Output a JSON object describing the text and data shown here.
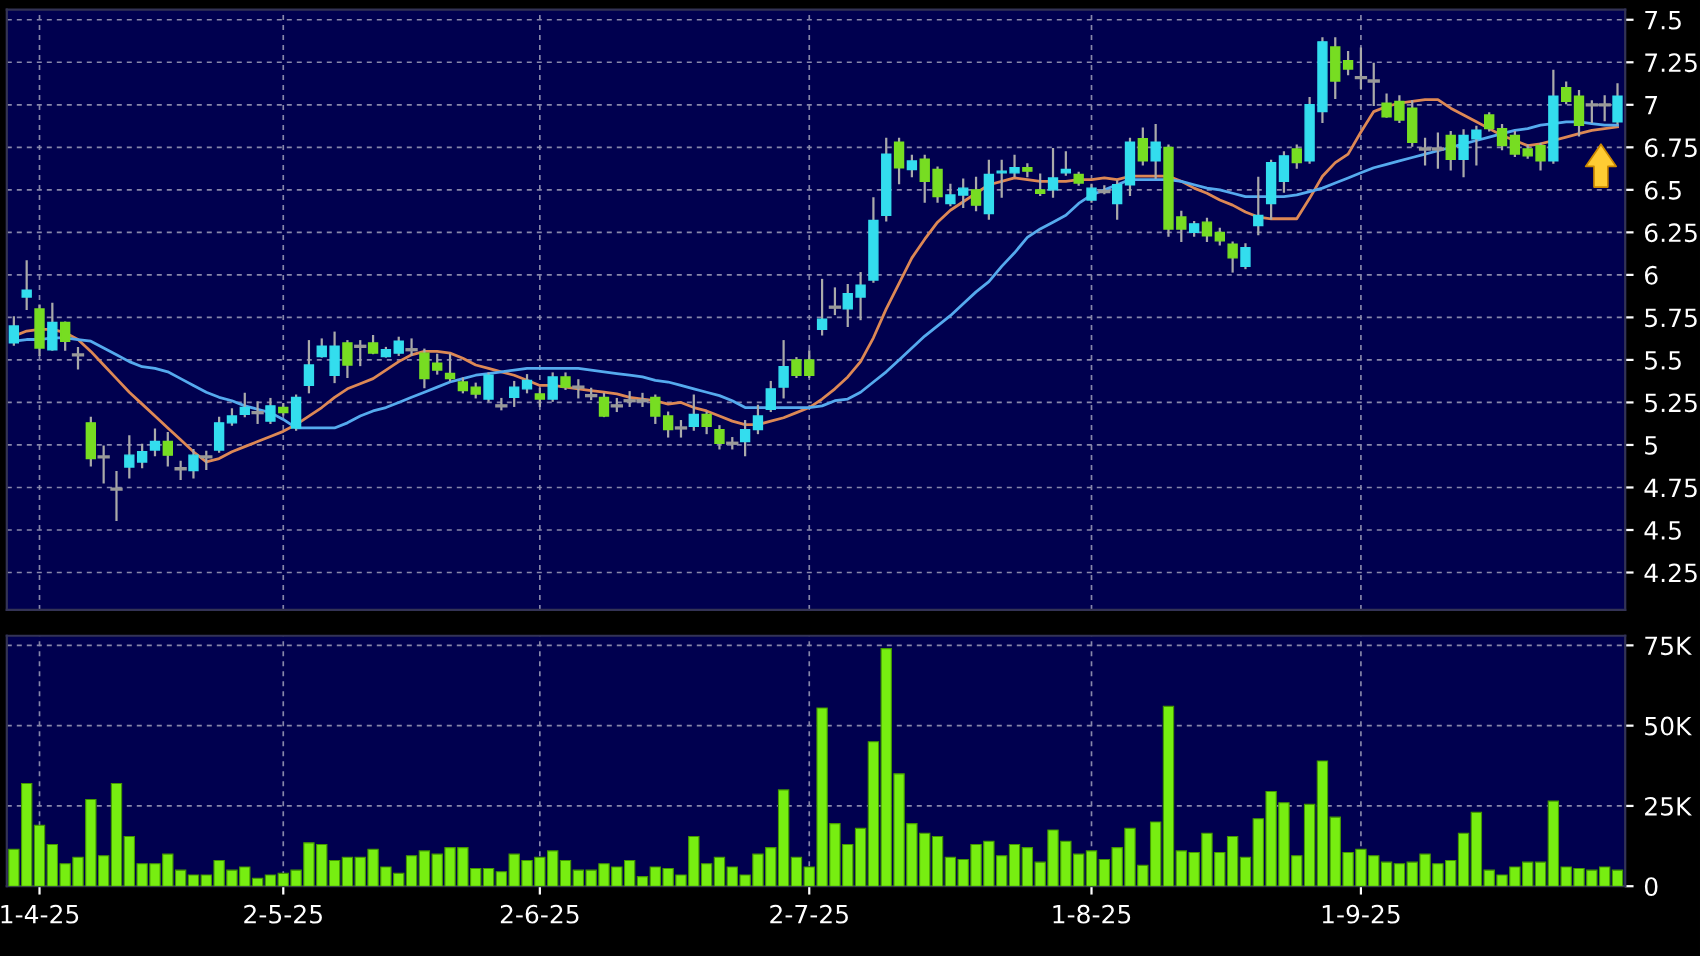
{
  "chart_data": [
    {
      "type": "candlestick",
      "tick_labels": "y",
      "grid": true,
      "categories": [
        null,
        null,
        null,
        null,
        null,
        null,
        null,
        null,
        null,
        null,
        null,
        null,
        null,
        null,
        null,
        null,
        null,
        null,
        null,
        null,
        null,
        null,
        null,
        null,
        null,
        null,
        null,
        null,
        null,
        null,
        null,
        null,
        null,
        null,
        null,
        null,
        null,
        null,
        null,
        null,
        null,
        null,
        null,
        null,
        null,
        null,
        null,
        null,
        null,
        null,
        null,
        null,
        null,
        null,
        null,
        null,
        null,
        null,
        null,
        null,
        null,
        null,
        null,
        null,
        null,
        null,
        null,
        null,
        null,
        null,
        null,
        null,
        null,
        null,
        null,
        null,
        null,
        null,
        null,
        null,
        null,
        null,
        null,
        null,
        null,
        null,
        null,
        null,
        null,
        null,
        null,
        null,
        null,
        null,
        null,
        null,
        null,
        null,
        null,
        null,
        null,
        null,
        null,
        null,
        null,
        null,
        null,
        null,
        null,
        null,
        null,
        null,
        null,
        null,
        null,
        null,
        null,
        null,
        null,
        null,
        null,
        null,
        null,
        null,
        null,
        null
      ],
      "ylim": [
        4.03,
        7.56
      ],
      "yticks": [
        4.25,
        4.5,
        4.75,
        5,
        5.25,
        5.5,
        5.75,
        6,
        6.25,
        6.5,
        6.75,
        7,
        7.25,
        7.5
      ],
      "ohlc": [
        [
          5.6,
          5.75,
          5.59,
          5.7
        ],
        [
          5.87,
          6.08,
          5.8,
          5.91
        ],
        [
          5.8,
          5.82,
          5.53,
          5.57
        ],
        [
          5.56,
          5.83,
          5.56,
          5.72
        ],
        [
          5.72,
          5.72,
          5.56,
          5.61
        ],
        [
          5.53,
          5.57,
          5.45,
          5.53
        ],
        [
          5.13,
          5.16,
          4.88,
          4.92
        ],
        [
          4.93,
          4.99,
          4.78,
          4.93
        ],
        [
          4.74,
          4.84,
          4.56,
          4.74
        ],
        [
          4.87,
          5.05,
          4.81,
          4.94
        ],
        [
          4.9,
          5.0,
          4.87,
          4.96
        ],
        [
          4.97,
          5.09,
          4.94,
          5.02
        ],
        [
          5.02,
          5.07,
          4.88,
          4.94
        ],
        [
          4.86,
          4.9,
          4.8,
          4.86
        ],
        [
          4.85,
          4.97,
          4.81,
          4.94
        ],
        [
          4.93,
          4.96,
          4.86,
          4.93
        ],
        [
          4.97,
          5.16,
          4.96,
          5.13
        ],
        [
          5.13,
          5.21,
          5.12,
          5.17
        ],
        [
          5.18,
          5.3,
          5.17,
          5.22
        ],
        [
          5.19,
          5.25,
          5.13,
          5.19
        ],
        [
          5.14,
          5.27,
          5.13,
          5.23
        ],
        [
          5.22,
          5.24,
          5.18,
          5.19
        ],
        [
          5.1,
          5.29,
          5.09,
          5.28
        ],
        [
          5.35,
          5.61,
          5.31,
          5.47
        ],
        [
          5.52,
          5.62,
          5.52,
          5.58
        ],
        [
          5.41,
          5.66,
          5.37,
          5.58
        ],
        [
          5.6,
          5.61,
          5.4,
          5.47
        ],
        [
          5.58,
          5.61,
          5.47,
          5.58
        ],
        [
          5.6,
          5.64,
          5.54,
          5.54
        ],
        [
          5.52,
          5.57,
          5.52,
          5.56
        ],
        [
          5.54,
          5.63,
          5.53,
          5.61
        ],
        [
          5.56,
          5.62,
          5.53,
          5.56
        ],
        [
          5.54,
          5.56,
          5.34,
          5.39
        ],
        [
          5.48,
          5.53,
          5.42,
          5.44
        ],
        [
          5.42,
          5.53,
          5.38,
          5.39
        ],
        [
          5.37,
          5.39,
          5.31,
          5.32
        ],
        [
          5.34,
          5.36,
          5.28,
          5.3
        ],
        [
          5.27,
          5.42,
          5.26,
          5.41
        ],
        [
          5.23,
          5.27,
          5.21,
          5.23
        ],
        [
          5.28,
          5.37,
          5.23,
          5.34
        ],
        [
          5.33,
          5.41,
          5.31,
          5.38
        ],
        [
          5.3,
          5.33,
          5.23,
          5.27
        ],
        [
          5.27,
          5.42,
          5.26,
          5.4
        ],
        [
          5.4,
          5.42,
          5.33,
          5.34
        ],
        [
          5.34,
          5.38,
          5.28,
          5.34
        ],
        [
          5.29,
          5.33,
          5.27,
          5.29
        ],
        [
          5.28,
          5.3,
          5.17,
          5.17
        ],
        [
          5.23,
          5.27,
          5.2,
          5.23
        ],
        [
          5.26,
          5.31,
          5.23,
          5.26
        ],
        [
          5.26,
          5.3,
          5.23,
          5.26
        ],
        [
          5.28,
          5.29,
          5.13,
          5.17
        ],
        [
          5.17,
          5.19,
          5.05,
          5.09
        ],
        [
          5.1,
          5.14,
          5.05,
          5.1
        ],
        [
          5.11,
          5.29,
          5.09,
          5.18
        ],
        [
          5.18,
          5.19,
          5.07,
          5.11
        ],
        [
          5.09,
          5.11,
          4.98,
          5.01
        ],
        [
          5.01,
          5.04,
          4.98,
          5.01
        ],
        [
          5.02,
          5.14,
          4.94,
          5.09
        ],
        [
          5.09,
          5.23,
          5.07,
          5.17
        ],
        [
          5.21,
          5.37,
          5.2,
          5.33
        ],
        [
          5.34,
          5.61,
          5.28,
          5.46
        ],
        [
          5.5,
          5.51,
          5.4,
          5.41
        ],
        [
          5.5,
          5.55,
          5.4,
          5.41
        ],
        [
          5.68,
          5.97,
          5.65,
          5.74
        ],
        [
          5.81,
          5.92,
          5.77,
          5.81
        ],
        [
          5.8,
          5.94,
          5.7,
          5.89
        ],
        [
          5.87,
          6.01,
          5.74,
          5.94
        ],
        [
          5.97,
          6.45,
          5.96,
          6.32
        ],
        [
          6.35,
          6.8,
          6.32,
          6.71
        ],
        [
          6.78,
          6.8,
          6.54,
          6.63
        ],
        [
          6.62,
          6.7,
          6.58,
          6.67
        ],
        [
          6.68,
          6.7,
          6.43,
          6.55
        ],
        [
          6.62,
          6.63,
          6.43,
          6.46
        ],
        [
          6.42,
          6.53,
          6.41,
          6.47
        ],
        [
          6.47,
          6.56,
          6.4,
          6.51
        ],
        [
          6.5,
          6.57,
          6.38,
          6.41
        ],
        [
          6.36,
          6.67,
          6.33,
          6.59
        ],
        [
          6.6,
          6.67,
          6.46,
          6.61
        ],
        [
          6.6,
          6.7,
          6.58,
          6.63
        ],
        [
          6.63,
          6.65,
          6.58,
          6.61
        ],
        [
          6.5,
          6.59,
          6.47,
          6.48
        ],
        [
          6.5,
          6.74,
          6.46,
          6.57
        ],
        [
          6.6,
          6.72,
          6.59,
          6.62
        ],
        [
          6.59,
          6.6,
          6.53,
          6.54
        ],
        [
          6.44,
          6.53,
          6.43,
          6.51
        ],
        [
          6.49,
          6.52,
          6.48,
          6.49
        ],
        [
          6.42,
          6.55,
          6.33,
          6.53
        ],
        [
          6.53,
          6.8,
          6.47,
          6.78
        ],
        [
          6.8,
          6.86,
          6.65,
          6.67
        ],
        [
          6.67,
          6.88,
          6.57,
          6.78
        ],
        [
          6.75,
          6.76,
          6.23,
          6.27
        ],
        [
          6.34,
          6.37,
          6.2,
          6.27
        ],
        [
          6.25,
          6.31,
          6.23,
          6.3
        ],
        [
          6.31,
          6.33,
          6.2,
          6.23
        ],
        [
          6.25,
          6.27,
          6.18,
          6.2
        ],
        [
          6.18,
          6.19,
          6.02,
          6.1
        ],
        [
          6.05,
          6.18,
          6.04,
          6.16
        ],
        [
          6.29,
          6.57,
          6.24,
          6.35
        ],
        [
          6.42,
          6.67,
          6.33,
          6.66
        ],
        [
          6.55,
          6.72,
          6.49,
          6.7
        ],
        [
          6.74,
          6.76,
          6.63,
          6.66
        ],
        [
          6.67,
          7.04,
          6.66,
          7.0
        ],
        [
          6.96,
          7.39,
          6.9,
          7.37
        ],
        [
          7.34,
          7.39,
          7.04,
          7.14
        ],
        [
          7.26,
          7.31,
          7.18,
          7.21
        ],
        [
          7.16,
          7.33,
          7.1,
          7.16
        ],
        [
          7.14,
          7.24,
          7.0,
          7.14
        ],
        [
          7.01,
          7.06,
          6.93,
          6.93
        ],
        [
          7.02,
          7.05,
          6.9,
          6.91
        ],
        [
          6.98,
          7.02,
          6.76,
          6.78
        ],
        [
          6.74,
          6.8,
          6.65,
          6.74
        ],
        [
          6.74,
          6.83,
          6.63,
          6.74
        ],
        [
          6.82,
          6.84,
          6.62,
          6.68
        ],
        [
          6.68,
          6.85,
          6.58,
          6.82
        ],
        [
          6.8,
          6.87,
          6.65,
          6.85
        ],
        [
          6.94,
          6.95,
          6.85,
          6.86
        ],
        [
          6.86,
          6.88,
          6.74,
          6.76
        ],
        [
          6.82,
          6.84,
          6.7,
          6.71
        ],
        [
          6.74,
          6.76,
          6.69,
          6.7
        ],
        [
          6.76,
          6.77,
          6.62,
          6.67
        ],
        [
          6.67,
          7.2,
          6.66,
          7.05
        ],
        [
          7.1,
          7.13,
          7.01,
          7.02
        ],
        [
          7.05,
          7.08,
          6.82,
          6.88
        ],
        [
          7.0,
          7.02,
          6.9,
          7.0
        ],
        [
          7.0,
          7.05,
          6.91,
          7.0
        ],
        [
          6.9,
          7.12,
          6.89,
          7.05
        ]
      ],
      "colors": [
        "#33ddee",
        "#33ddee",
        "#77dd22",
        "#33ddee",
        "#77dd22",
        "#999999",
        "#77dd22",
        "#999999",
        "#999999",
        "#33ddee",
        "#33ddee",
        "#33ddee",
        "#77dd22",
        "#999999",
        "#33ddee",
        "#999999",
        "#33ddee",
        "#33ddee",
        "#33ddee",
        "#999999",
        "#33ddee",
        "#77dd22",
        "#33ddee",
        "#33ddee",
        "#33ddee",
        "#33ddee",
        "#77dd22",
        "#999999",
        "#77dd22",
        "#33ddee",
        "#33ddee",
        "#999999",
        "#77dd22",
        "#77dd22",
        "#77dd22",
        "#77dd22",
        "#77dd22",
        "#33ddee",
        "#999999",
        "#33ddee",
        "#33ddee",
        "#77dd22",
        "#33ddee",
        "#77dd22",
        "#999999",
        "#999999",
        "#77dd22",
        "#999999",
        "#999999",
        "#999999",
        "#77dd22",
        "#77dd22",
        "#999999",
        "#33ddee",
        "#77dd22",
        "#77dd22",
        "#999999",
        "#33ddee",
        "#33ddee",
        "#33ddee",
        "#33ddee",
        "#77dd22",
        "#77dd22",
        "#33ddee",
        "#999999",
        "#33ddee",
        "#33ddee",
        "#33ddee",
        "#33ddee",
        "#77dd22",
        "#33ddee",
        "#77dd22",
        "#77dd22",
        "#33ddee",
        "#33ddee",
        "#77dd22",
        "#33ddee",
        "#33ddee",
        "#33ddee",
        "#77dd22",
        "#77dd22",
        "#33ddee",
        "#33ddee",
        "#77dd22",
        "#33ddee",
        "#999999",
        "#33ddee",
        "#33ddee",
        "#77dd22",
        "#33ddee",
        "#77dd22",
        "#77dd22",
        "#33ddee",
        "#77dd22",
        "#77dd22",
        "#77dd22",
        "#33ddee",
        "#33ddee",
        "#33ddee",
        "#33ddee",
        "#77dd22",
        "#33ddee",
        "#33ddee",
        "#77dd22",
        "#77dd22",
        "#999999",
        "#999999",
        "#77dd22",
        "#77dd22",
        "#77dd22",
        "#999999",
        "#999999",
        "#77dd22",
        "#33ddee",
        "#33ddee",
        "#77dd22",
        "#77dd22",
        "#77dd22",
        "#77dd22",
        "#77dd22",
        "#33ddee",
        "#77dd22",
        "#77dd22",
        "#999999",
        "#999999",
        "#33ddee"
      ],
      "series": [
        {
          "type": "line",
          "color": "#dd8855",
          "values": [
            5.64,
            5.67,
            5.68,
            5.68,
            5.66,
            5.62,
            5.55,
            5.47,
            5.39,
            5.31,
            5.24,
            5.17,
            5.1,
            5.03,
            4.96,
            4.9,
            4.92,
            4.96,
            4.99,
            5.02,
            5.05,
            5.08,
            5.12,
            5.17,
            5.22,
            5.28,
            5.33,
            5.36,
            5.39,
            5.44,
            5.49,
            5.53,
            5.55,
            5.55,
            5.54,
            5.51,
            5.47,
            5.45,
            5.43,
            5.41,
            5.38,
            5.35,
            5.35,
            5.34,
            5.33,
            5.32,
            5.31,
            5.3,
            5.28,
            5.27,
            5.26,
            5.24,
            5.25,
            5.22,
            5.2,
            5.17,
            5.14,
            5.12,
            5.12,
            5.14,
            5.16,
            5.19,
            5.22,
            5.27,
            5.33,
            5.4,
            5.49,
            5.63,
            5.8,
            5.95,
            6.1,
            6.21,
            6.31,
            6.38,
            6.43,
            6.48,
            6.53,
            6.55,
            6.57,
            6.56,
            6.55,
            6.55,
            6.55,
            6.56,
            6.56,
            6.57,
            6.56,
            6.58,
            6.58,
            6.58,
            6.58,
            6.55,
            6.51,
            6.48,
            6.44,
            6.41,
            6.37,
            6.34,
            6.33,
            6.33,
            6.33,
            6.45,
            6.58,
            6.66,
            6.71,
            6.84,
            6.96,
            6.99,
            7.01,
            7.02,
            7.03,
            7.03,
            6.98,
            6.94,
            6.9,
            6.86,
            6.82,
            6.79,
            6.76,
            6.77,
            6.79,
            6.81,
            6.83,
            6.85,
            6.86,
            6.87
          ]
        },
        {
          "type": "line",
          "color": "#55aaee",
          "values": [
            5.61,
            5.62,
            5.62,
            5.63,
            5.63,
            5.62,
            5.61,
            5.57,
            5.53,
            5.49,
            5.46,
            5.45,
            5.43,
            5.39,
            5.35,
            5.31,
            5.28,
            5.26,
            5.23,
            5.21,
            5.19,
            5.15,
            5.1,
            5.1,
            5.1,
            5.1,
            5.13,
            5.17,
            5.2,
            5.22,
            5.25,
            5.28,
            5.31,
            5.34,
            5.37,
            5.39,
            5.41,
            5.42,
            5.43,
            5.44,
            5.45,
            5.45,
            5.45,
            5.45,
            5.45,
            5.44,
            5.43,
            5.42,
            5.41,
            5.4,
            5.38,
            5.37,
            5.35,
            5.33,
            5.31,
            5.29,
            5.26,
            5.22,
            5.22,
            5.22,
            5.22,
            5.22,
            5.22,
            5.23,
            5.26,
            5.27,
            5.31,
            5.37,
            5.43,
            5.5,
            5.57,
            5.64,
            5.7,
            5.76,
            5.83,
            5.9,
            5.96,
            6.05,
            6.13,
            6.22,
            6.27,
            6.31,
            6.35,
            6.42,
            6.47,
            6.5,
            6.53,
            6.56,
            6.56,
            6.56,
            6.56,
            6.55,
            6.53,
            6.51,
            6.5,
            6.48,
            6.46,
            6.46,
            6.46,
            6.46,
            6.47,
            6.49,
            6.51,
            6.54,
            6.57,
            6.6,
            6.63,
            6.65,
            6.67,
            6.69,
            6.71,
            6.73,
            6.75,
            6.77,
            6.79,
            6.81,
            6.83,
            6.85,
            6.86,
            6.88,
            6.89,
            6.9,
            6.9,
            6.89,
            6.88,
            6.88
          ]
        }
      ]
    },
    {
      "type": "bar",
      "grid": true,
      "color": "#77ee11",
      "categories": [
        null,
        null,
        "1-4-25",
        null,
        null,
        null,
        null,
        null,
        null,
        null,
        null,
        null,
        null,
        null,
        null,
        null,
        null,
        null,
        null,
        null,
        null,
        "2-5-25",
        null,
        null,
        null,
        null,
        null,
        null,
        null,
        null,
        null,
        null,
        null,
        null,
        null,
        null,
        null,
        null,
        null,
        null,
        null,
        "2-6-25",
        null,
        null,
        null,
        null,
        null,
        null,
        null,
        null,
        null,
        null,
        null,
        null,
        null,
        null,
        null,
        null,
        null,
        null,
        null,
        null,
        "2-7-25",
        null,
        null,
        null,
        null,
        null,
        null,
        null,
        null,
        null,
        null,
        null,
        null,
        null,
        null,
        null,
        null,
        null,
        null,
        null,
        null,
        null,
        "1-8-25",
        null,
        null,
        null,
        null,
        null,
        null,
        null,
        null,
        null,
        null,
        null,
        null,
        null,
        null,
        null,
        null,
        null,
        null,
        null,
        null,
        "1-9-25",
        null,
        null,
        null,
        null,
        null,
        null,
        null,
        null,
        null,
        null,
        null,
        null,
        null,
        null,
        null,
        null,
        null,
        null,
        null,
        null
      ],
      "ylim": [
        0,
        78000
      ],
      "yticks": [
        0,
        {
          "value": 25000,
          "label": "25K"
        },
        {
          "value": 50000,
          "label": "50K"
        },
        {
          "value": 75000,
          "label": "75K"
        }
      ],
      "values": [
        11500,
        32000,
        19000,
        13000,
        7000,
        9000,
        27000,
        9500,
        32000,
        15500,
        7000,
        7000,
        10000,
        5000,
        3500,
        3500,
        8000,
        5000,
        6000,
        2500,
        3500,
        4000,
        5000,
        13500,
        13000,
        8000,
        9000,
        9000,
        11500,
        6000,
        4000,
        9500,
        11000,
        10000,
        12000,
        12000,
        5500,
        5500,
        4500,
        10000,
        8000,
        9000,
        11000,
        8000,
        5000,
        5000,
        7000,
        6000,
        8000,
        3000,
        6000,
        5500,
        3500,
        15500,
        7000,
        9000,
        6000,
        3500,
        10000,
        12000,
        30000,
        9000,
        6000,
        55500,
        19500,
        13000,
        18000,
        45000,
        74000,
        35000,
        19500,
        16500,
        15500,
        9000,
        8300,
        13000,
        14000,
        9500,
        13000,
        12000,
        7500,
        17500,
        14000,
        10000,
        11000,
        8300,
        12000,
        18000,
        6500,
        20000,
        56000,
        11000,
        10500,
        16500,
        10500,
        15500,
        9000,
        21000,
        29500,
        26000,
        9500,
        25500,
        39000,
        21500,
        10500,
        11500,
        9500,
        7500,
        7000,
        7500,
        10000,
        7000,
        8000,
        16500,
        23000,
        5000,
        3500,
        6000,
        7500,
        7500,
        26500,
        6000,
        5500,
        5000,
        6000,
        5000
      ]
    }
  ]
}
